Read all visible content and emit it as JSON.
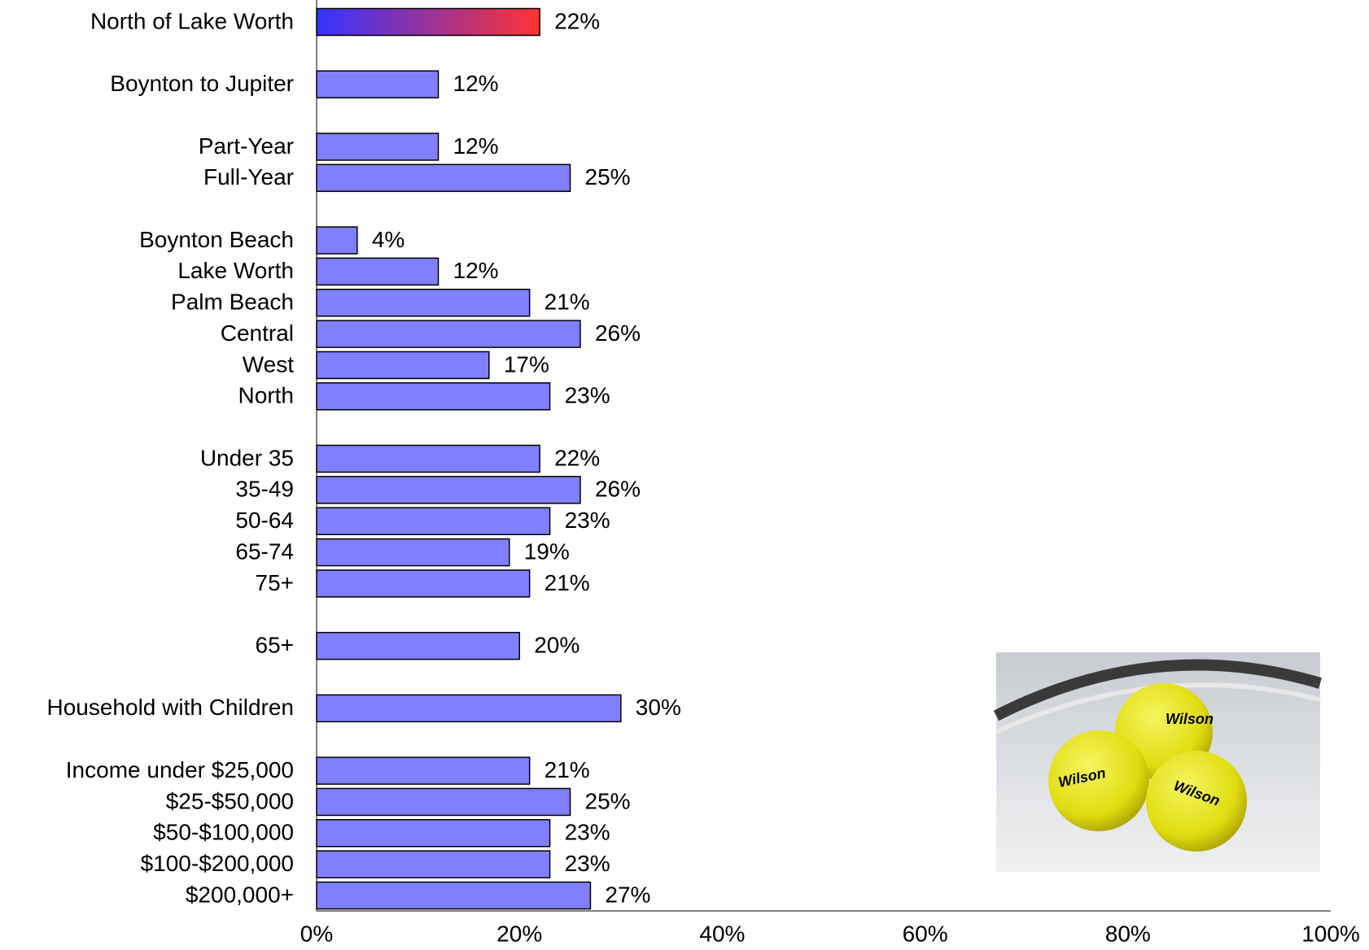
{
  "chart_data": {
    "type": "bar",
    "orientation": "horizontal",
    "categories": [
      "North of Lake Worth",
      null,
      "Boynton to Jupiter",
      null,
      "Part-Year",
      "Full-Year",
      null,
      "Boynton Beach",
      "Lake Worth",
      "Palm Beach",
      "Central",
      "West",
      "North",
      null,
      "Under 35",
      "35-49",
      "50-64",
      "65-74",
      "75+",
      null,
      "65+",
      null,
      "Household with Children",
      null,
      "Income under $25,000",
      "$25-$50,000",
      "$50-$100,000",
      "$100-$200,000",
      "$200,000+"
    ],
    "values": [
      22,
      null,
      12,
      null,
      12,
      25,
      null,
      4,
      12,
      21,
      26,
      17,
      23,
      null,
      22,
      26,
      23,
      19,
      21,
      null,
      20,
      null,
      30,
      null,
      21,
      25,
      23,
      23,
      27
    ],
    "value_labels": [
      "22%",
      null,
      "12%",
      null,
      "12%",
      "25%",
      null,
      "4%",
      "12%",
      "21%",
      "26%",
      "17%",
      "23%",
      null,
      "22%",
      "26%",
      "23%",
      "19%",
      "21%",
      null,
      "20%",
      null,
      "30%",
      null,
      "21%",
      "25%",
      "23%",
      "23%",
      "27%"
    ],
    "color": "#8080ff",
    "highlight": {
      "index": 0,
      "colors": [
        "#3333ff",
        "#ff3333"
      ]
    },
    "xlim": [
      0,
      100
    ],
    "xticks": [
      {
        "value": 0,
        "label": "0%"
      },
      {
        "value": 20,
        "label": "20%"
      },
      {
        "value": 40,
        "label": "40%"
      },
      {
        "value": 60,
        "label": "60%"
      },
      {
        "value": 80,
        "label": "80%"
      },
      {
        "value": 100,
        "label": "100%"
      }
    ],
    "grid": false
  }
}
